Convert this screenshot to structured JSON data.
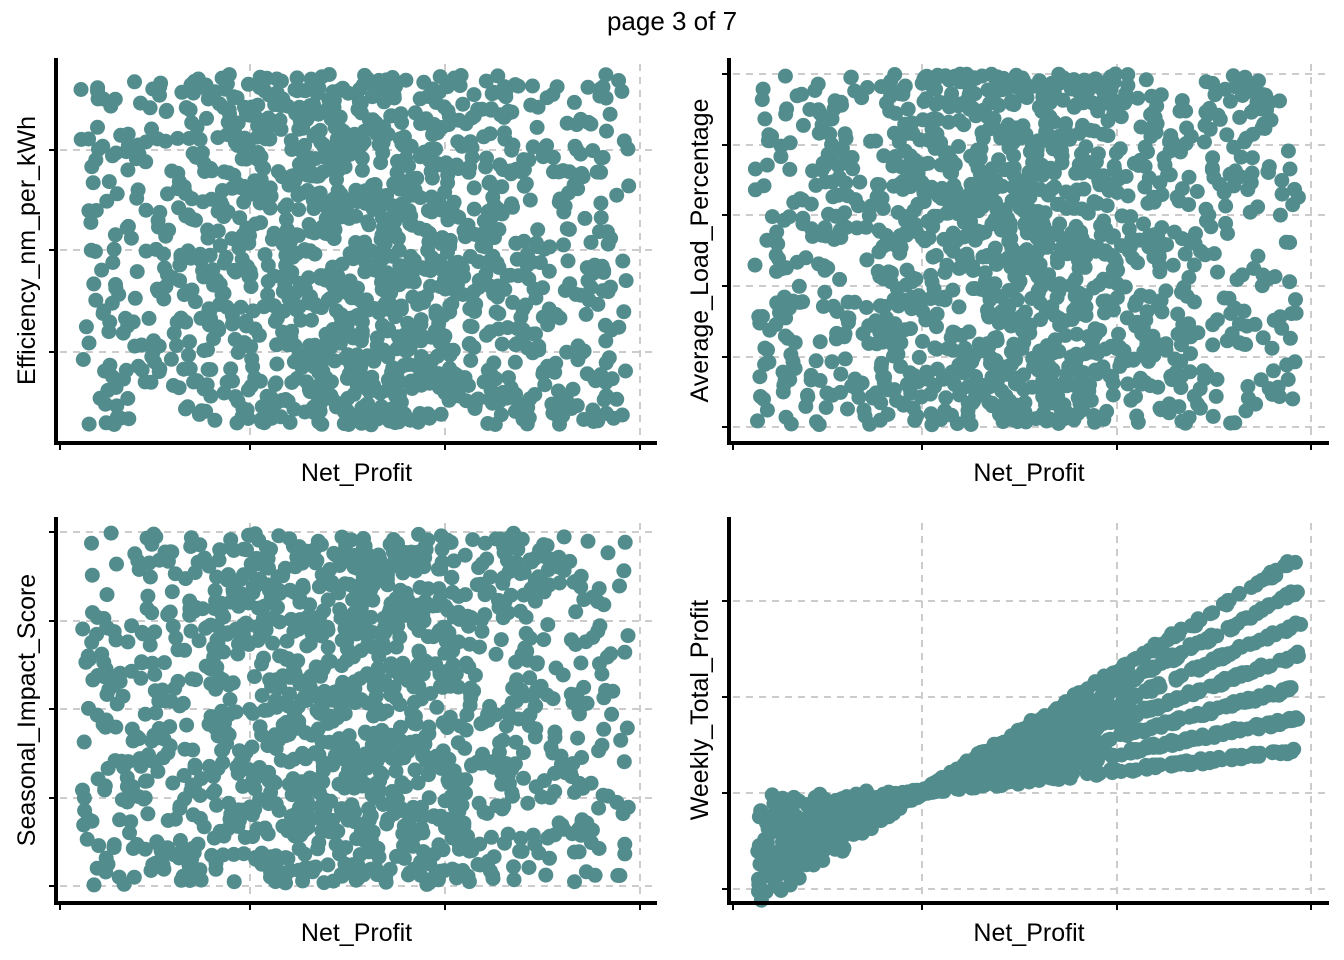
{
  "page": {
    "title": "page 3 of 7"
  },
  "style": {
    "point_color": "#528c8c",
    "grid_color": "#cccccc",
    "axis_color": "#000000"
  },
  "chart_data": [
    {
      "type": "scatter",
      "xlabel": "Net_Profit",
      "ylabel": "Efficiency_nm_per_kWh",
      "grid": true,
      "tick_labels_shown": false,
      "pattern": "uniform",
      "n_points": 1400,
      "seed": 11
    },
    {
      "type": "scatter",
      "xlabel": "Net_Profit",
      "ylabel": "Average_Load_Percentage",
      "grid": true,
      "tick_labels_shown": false,
      "pattern": "uniform",
      "n_points": 1400,
      "seed": 23
    },
    {
      "type": "scatter",
      "xlabel": "Net_Profit",
      "ylabel": "Seasonal_Impact_Score",
      "grid": true,
      "tick_labels_shown": false,
      "pattern": "uniform",
      "n_points": 1400,
      "seed": 37
    },
    {
      "type": "scatter",
      "xlabel": "Net_Profit",
      "ylabel": "Weekly_Total_Profit",
      "grid": true,
      "tick_labels_shown": false,
      "pattern": "fan",
      "n_points": 1400,
      "seed": 53,
      "fan_slopes": [
        1,
        2,
        3,
        4,
        5,
        6,
        7
      ]
    }
  ]
}
